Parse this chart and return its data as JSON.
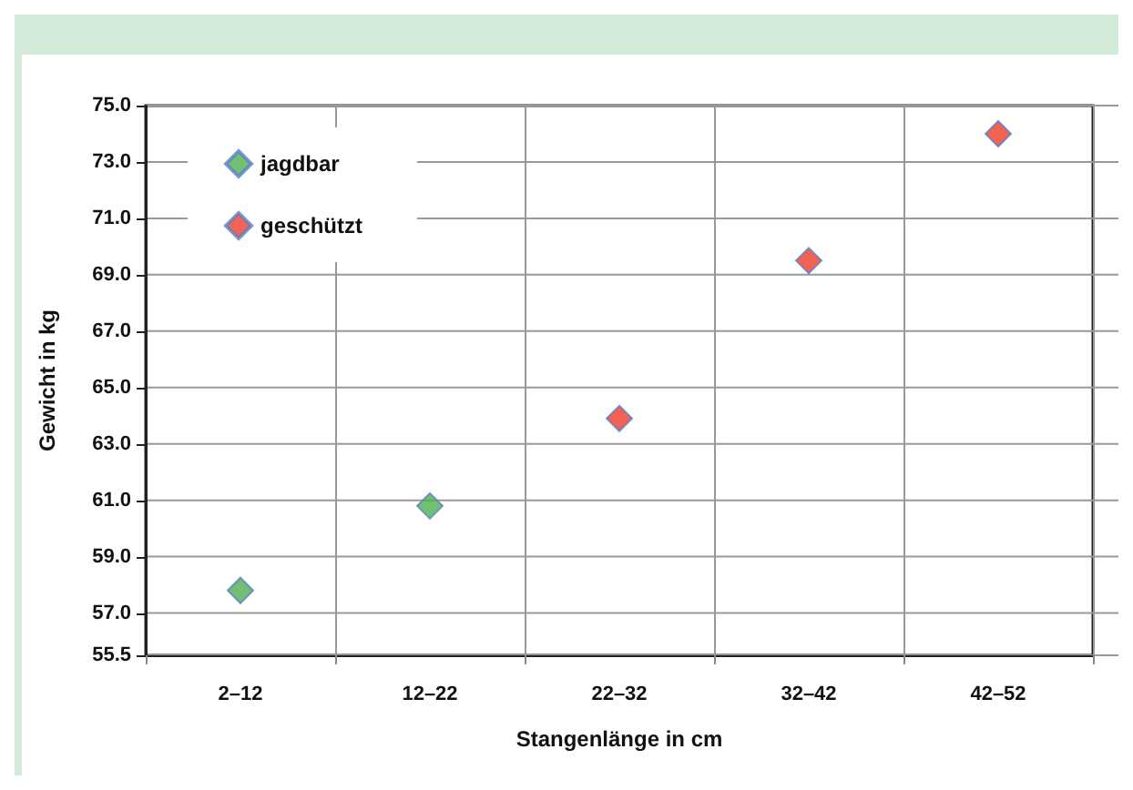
{
  "chart_data": {
    "type": "scatter",
    "xlabel": "Stangenlänge in cm",
    "ylabel": "Gewicht in kg",
    "categories": [
      "2–12",
      "12–22",
      "22–32",
      "32–42",
      "42–52"
    ],
    "series": [
      {
        "name": "jagdbar",
        "color": "#4caf50",
        "values": [
          57.8,
          60.8,
          null,
          null,
          null
        ]
      },
      {
        "name": "geschützt",
        "color": "#f03c28",
        "values": [
          null,
          null,
          63.9,
          69.5,
          74.0
        ]
      }
    ],
    "ylim": [
      55.5,
      75.0
    ],
    "yticks": [
      55.5,
      {
        "value": 57,
        "label": "57.0"
      },
      {
        "value": 59,
        "label": "59.0"
      },
      {
        "value": 61,
        "label": "61.0"
      },
      {
        "value": 63,
        "label": "63.0"
      },
      {
        "value": 65,
        "label": "65.0"
      },
      {
        "value": 67,
        "label": "67.0"
      },
      {
        "value": 69,
        "label": "69.0"
      },
      {
        "value": 71,
        "label": "71.0"
      },
      {
        "value": 73,
        "label": "73.0"
      },
      {
        "value": 75,
        "label": "75.0"
      }
    ],
    "grid": true,
    "legend": "top left",
    "marker": "diamond"
  }
}
